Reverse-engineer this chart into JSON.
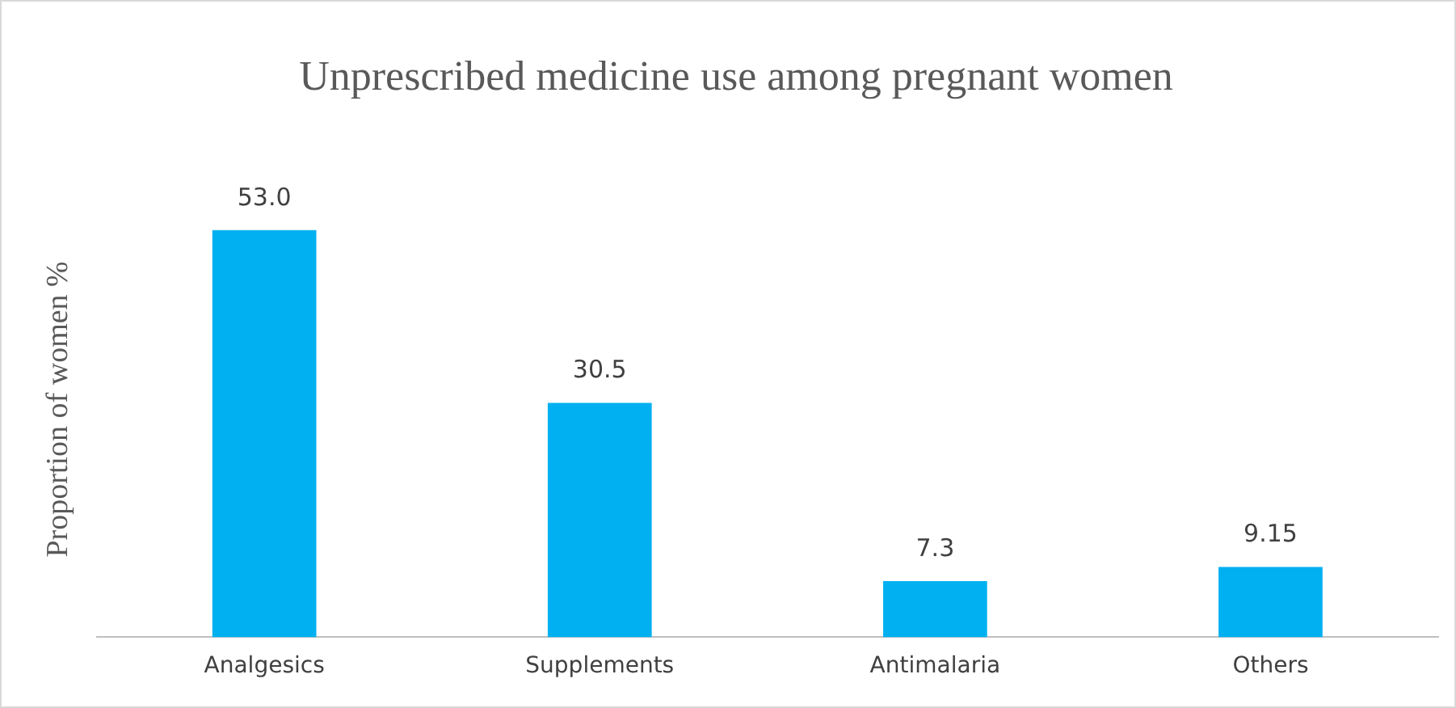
{
  "chart_data": {
    "type": "bar",
    "title": "Unprescribed medicine use among pregnant women",
    "ylabel": "Proportion of women %",
    "categories": [
      "Analgesics",
      "Supplements",
      "Antimalaria",
      "Others"
    ],
    "values": [
      53.0,
      30.5,
      7.3,
      9.15
    ],
    "value_labels": [
      "53.0",
      "30.5",
      "7.3",
      "9.15"
    ],
    "color": "#00b0f0",
    "grid": false,
    "legend": false
  }
}
